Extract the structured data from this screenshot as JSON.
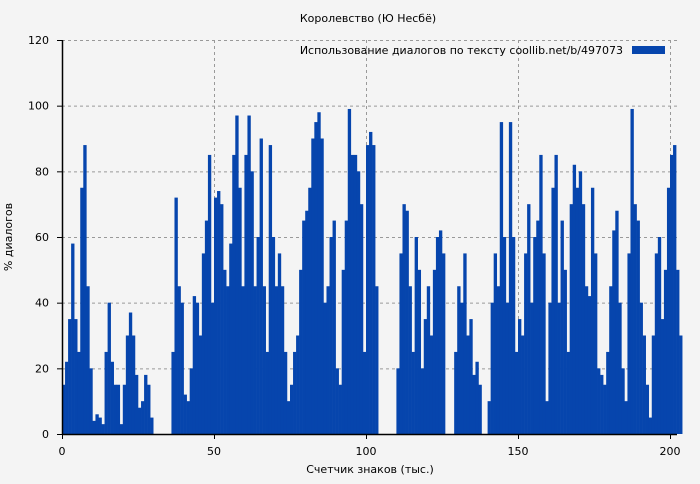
{
  "chart_data": {
    "type": "bar",
    "title": "Королевство (Ю Несбё)",
    "xlabel": "Счетчик знаков (тыс.)",
    "ylabel": "% диалогов",
    "xlim": [
      0,
      203
    ],
    "ylim": [
      0,
      120
    ],
    "xticks": [
      0,
      50,
      100,
      150,
      200
    ],
    "yticks": [
      0,
      20,
      40,
      60,
      80,
      100,
      120
    ],
    "grid": true,
    "legend": {
      "position": "top-right",
      "label": "Использование диалогов по тексту  coollib.net/b/497073"
    },
    "series": [
      {
        "name": "Использование диалогов по тексту  coollib.net/b/497073",
        "color": "#0645ad",
        "x_step": 1,
        "values": [
          15,
          22,
          35,
          58,
          35,
          25,
          75,
          88,
          45,
          20,
          4,
          6,
          5,
          3,
          25,
          40,
          22,
          15,
          15,
          3,
          15,
          30,
          37,
          30,
          18,
          8,
          10,
          18,
          15,
          5,
          0,
          0,
          0,
          0,
          0,
          0,
          25,
          72,
          45,
          40,
          12,
          10,
          20,
          42,
          40,
          30,
          55,
          65,
          85,
          40,
          72,
          74,
          70,
          50,
          45,
          58,
          85,
          97,
          75,
          45,
          85,
          97,
          80,
          45,
          60,
          90,
          45,
          25,
          88,
          60,
          45,
          55,
          45,
          25,
          10,
          15,
          25,
          30,
          50,
          65,
          68,
          75,
          90,
          95,
          98,
          90,
          40,
          45,
          60,
          65,
          20,
          15,
          50,
          65,
          99,
          85,
          85,
          80,
          70,
          25,
          88,
          92,
          88,
          45,
          0,
          0,
          0,
          0,
          0,
          0,
          20,
          55,
          70,
          68,
          45,
          25,
          60,
          50,
          20,
          35,
          45,
          30,
          50,
          60,
          62,
          55,
          0,
          0,
          0,
          25,
          45,
          40,
          55,
          30,
          35,
          18,
          22,
          15,
          0,
          0,
          10,
          40,
          55,
          45,
          95,
          60,
          40,
          95,
          60,
          25,
          35,
          30,
          55,
          70,
          40,
          60,
          65,
          85,
          55,
          10,
          40,
          75,
          85,
          40,
          65,
          50,
          25,
          70,
          82,
          75,
          80,
          70,
          45,
          42,
          75,
          55,
          20,
          18,
          15,
          25,
          45,
          62,
          68,
          40,
          20,
          10,
          55,
          99,
          70,
          65,
          40,
          30,
          15,
          5,
          30,
          55,
          60,
          35,
          50,
          75,
          85,
          88,
          50,
          30
        ]
      }
    ]
  }
}
